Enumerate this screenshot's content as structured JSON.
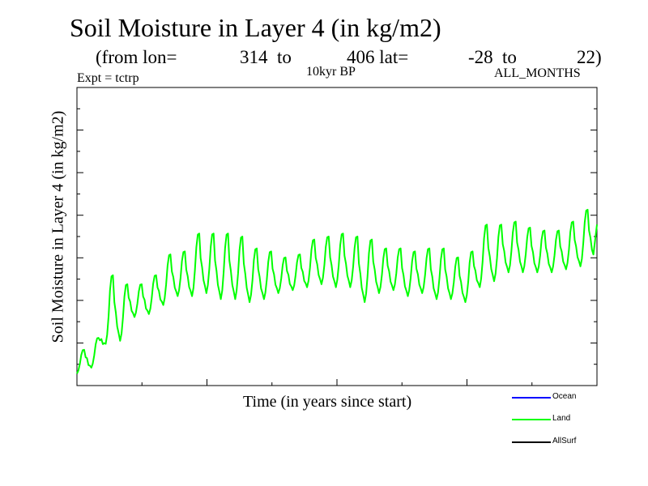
{
  "header": {
    "title": "Soil Moisture in Layer 4 (in kg/m2)",
    "subtitle": {
      "open": "(from lon=",
      "lon_from": "314",
      "to1": "to",
      "lon_to": "406 lat=",
      "lat_from": "-28",
      "to2": "to",
      "lat_to": "22)"
    },
    "expt": "Expt = tctrp",
    "period": "10kyr BP",
    "months": "ALL_MONTHS"
  },
  "legend": [
    {
      "label": "Ocean",
      "color": "#0000ff"
    },
    {
      "label": "Land",
      "color": "#00ff00"
    },
    {
      "label": "AllSurf",
      "color": "#000000"
    }
  ],
  "chart_data": {
    "type": "line",
    "title": "Soil Moisture in Layer 4 (in kg/m2)",
    "xlabel": "Time (in years since start)",
    "ylabel": "Soil Moisture in Layer 4 (in kg/m2)",
    "xlim": [
      0,
      200
    ],
    "ylim": [
      0,
      100
    ],
    "grid": false,
    "legend_position": "bottom-right",
    "series": [
      {
        "name": "Land",
        "color": "#00ff00",
        "peaks": [
          12,
          16,
          37,
          34,
          34,
          37,
          44,
          45,
          51,
          51,
          51,
          50,
          46,
          45,
          43,
          44,
          49,
          50,
          51,
          50,
          49,
          46,
          46,
          45,
          46,
          46,
          43,
          45,
          54,
          54,
          55,
          53,
          52,
          52,
          55,
          59
        ],
        "troughs": [
          4,
          6,
          14,
          15,
          23,
          24,
          27,
          30,
          30,
          31,
          29,
          29,
          28,
          29,
          31,
          32,
          33,
          34,
          33,
          33,
          28,
          31,
          32,
          30,
          31,
          29,
          29,
          28,
          33,
          35,
          38,
          38,
          38,
          38,
          39,
          40,
          42,
          43
        ]
      }
    ]
  }
}
